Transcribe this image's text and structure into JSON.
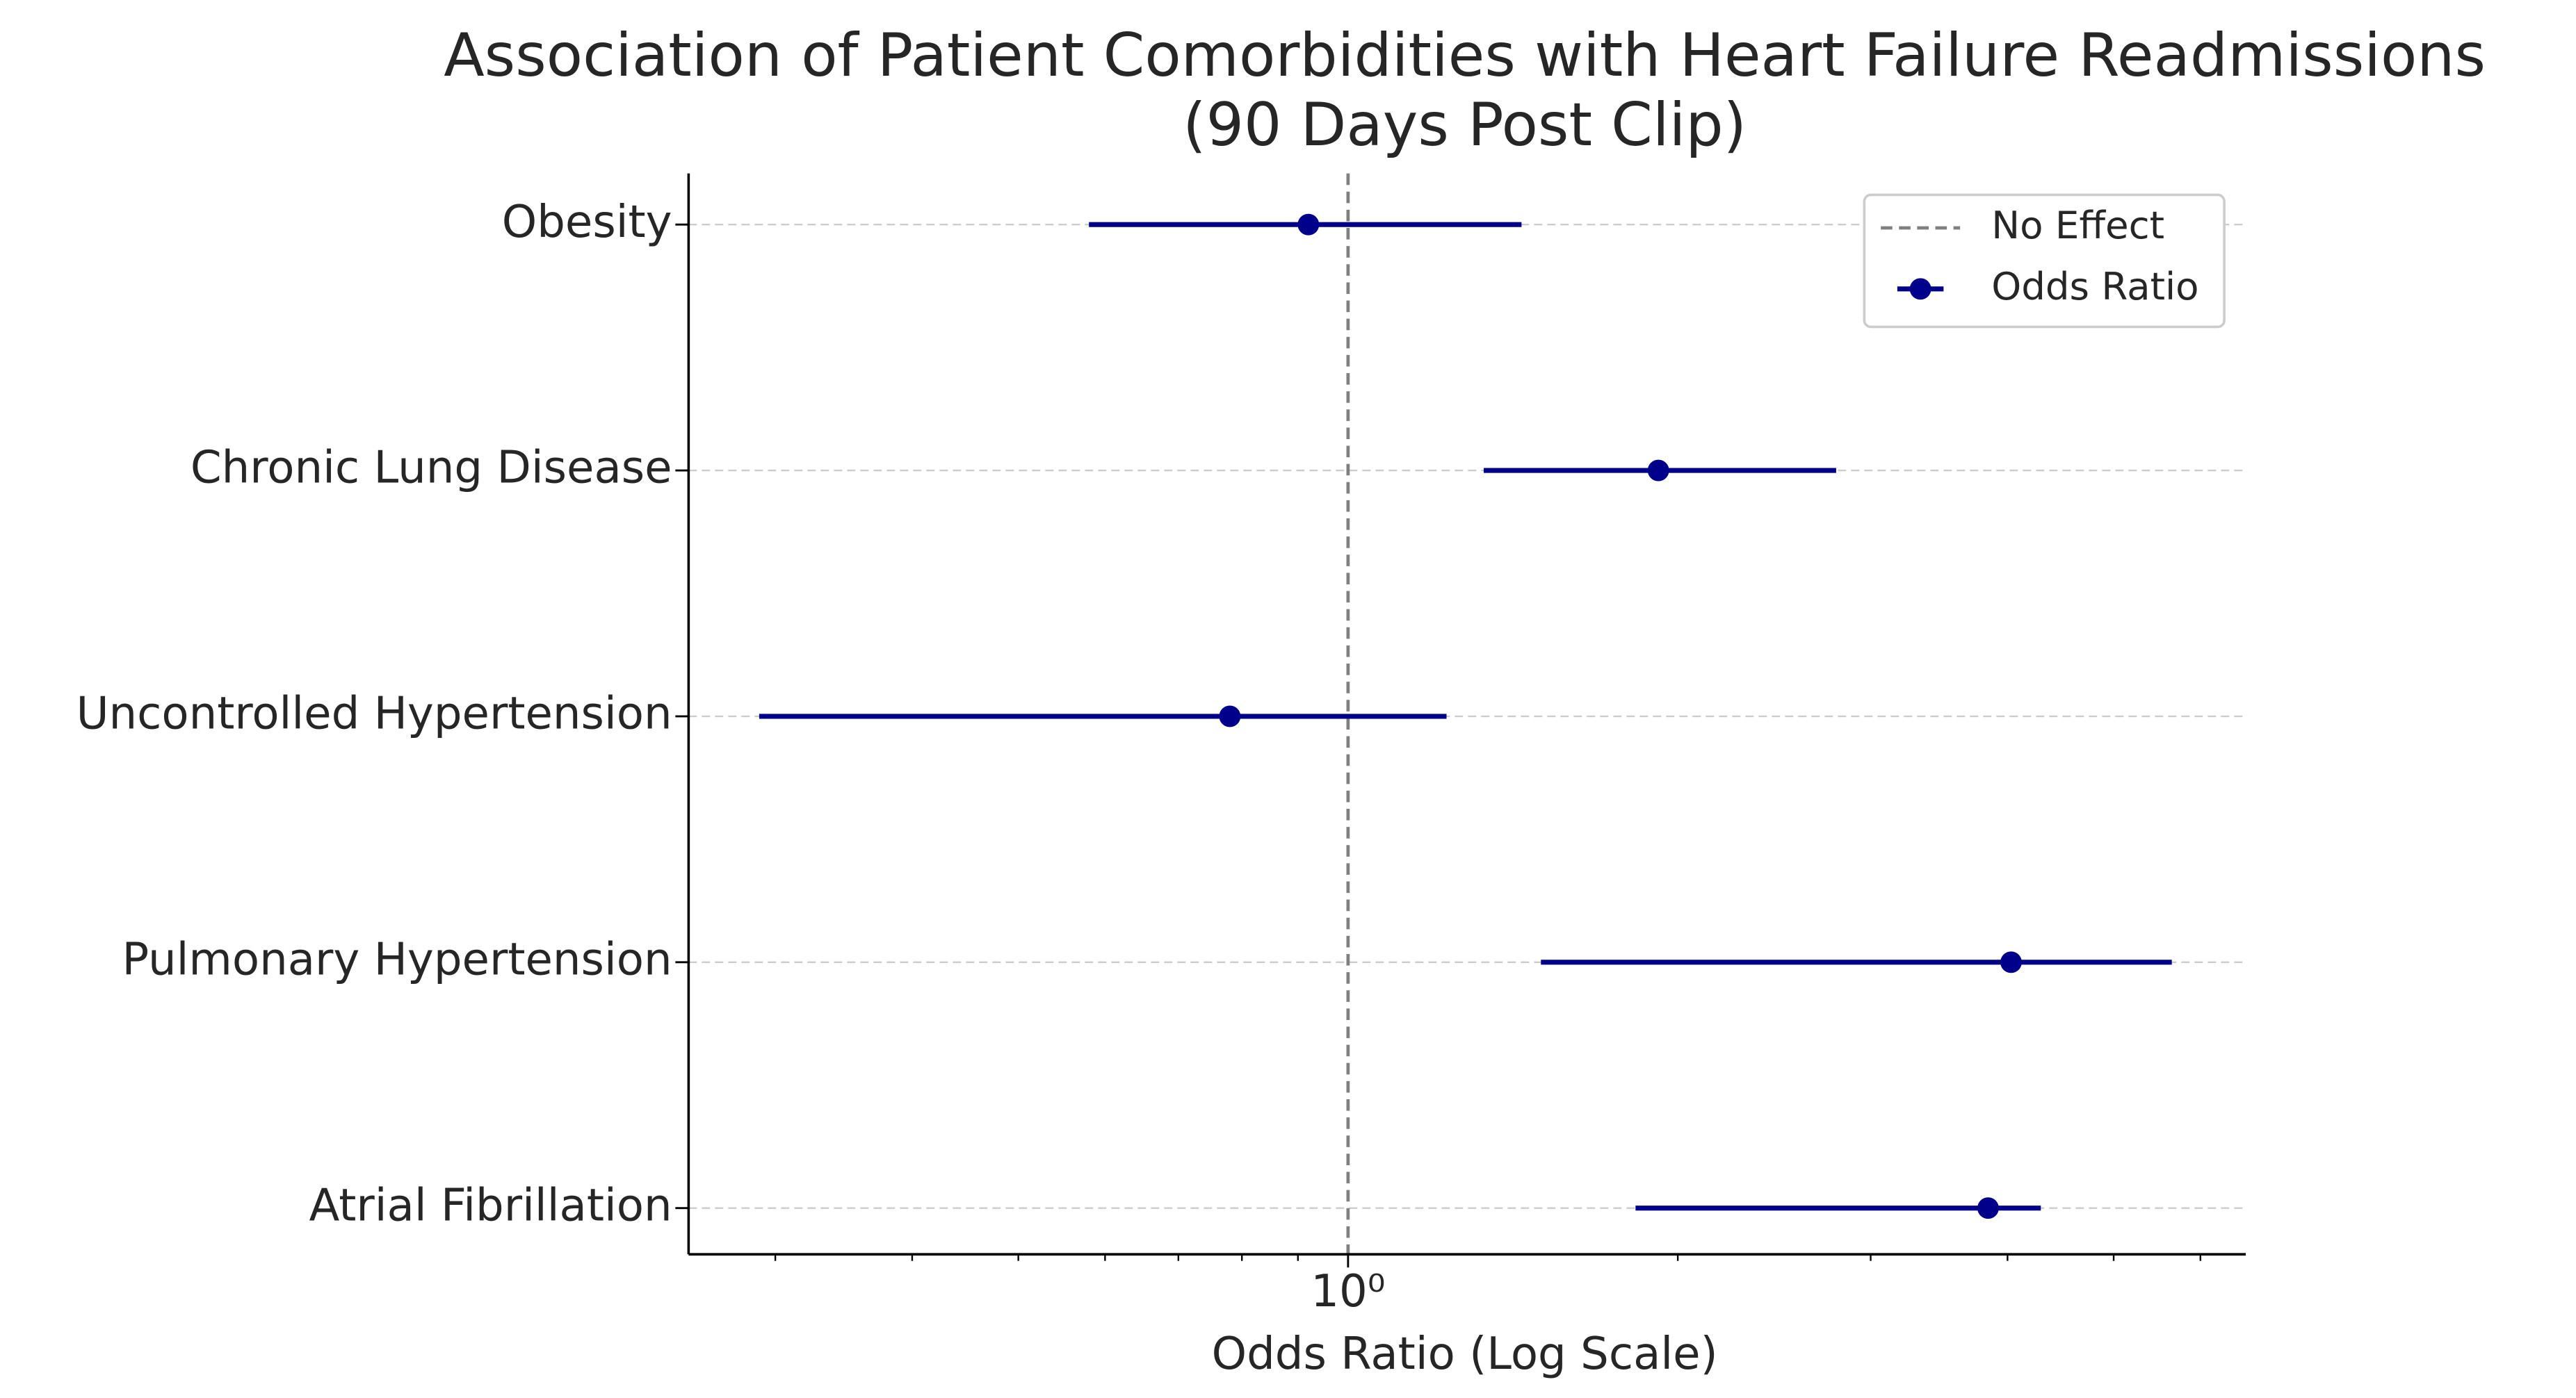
{
  "chart_data": {
    "type": "forest",
    "title": [
      "Association of Patient Comorbidities with Heart Failure Readmissions",
      "(90 Days Post Clip)"
    ],
    "x_label": "Odds Ratio (Log Scale)",
    "x_scale": "log",
    "categories": [
      "Obesity",
      "Chronic Lung Disease",
      "Uncontrolled Hypertension",
      "Pulmonary Hypertension",
      "Atrial Fibrillation"
    ],
    "series": [
      {
        "name": "Odds Ratio",
        "color": "#00008b",
        "values": [
          0.92,
          1.92,
          0.78,
          4.03,
          3.84
        ],
        "ci_low": [
          0.58,
          1.33,
          0.29,
          1.5,
          1.83
        ],
        "ci_high": [
          1.44,
          2.79,
          1.23,
          5.65,
          4.29
        ]
      }
    ],
    "reference_line": {
      "name": "No Effect",
      "value": 1,
      "color": "#808080"
    },
    "xlim": [
      0.25,
      6.6
    ],
    "xticks": [
      {
        "value": 1,
        "label": "10⁰"
      }
    ],
    "xticks_minor": [
      0.3,
      0.4,
      0.5,
      0.6,
      0.7,
      0.8,
      0.9,
      2,
      3,
      4,
      5,
      6
    ],
    "grid": "y",
    "legend": "upper right"
  }
}
